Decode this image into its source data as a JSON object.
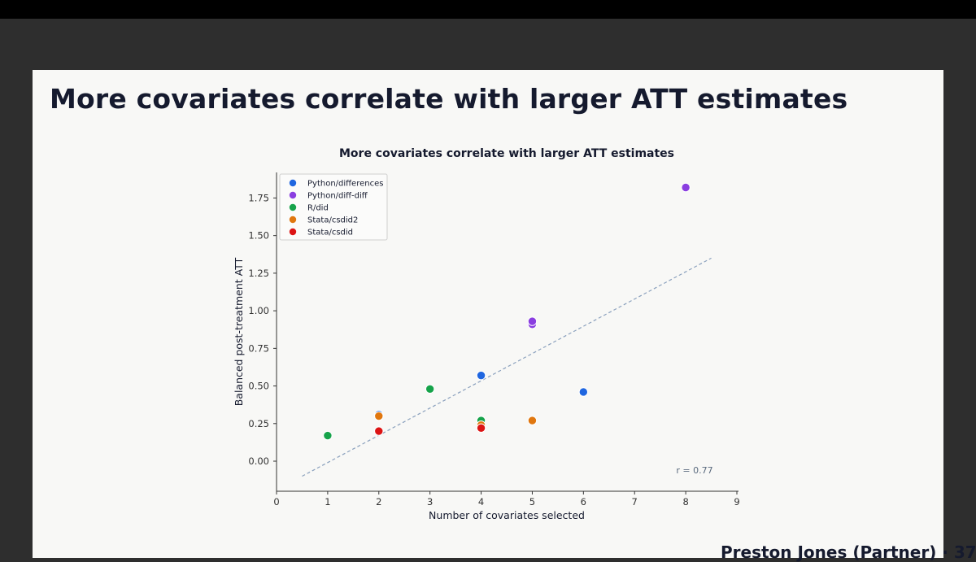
{
  "slide": {
    "title": "More covariates correlate with larger ATT estimates",
    "footer": "Preston Jones (Partner) · 37"
  },
  "colors": {
    "Python/differences": "#1f66e0",
    "Python/diff-diff": "#8a3ee0",
    "R/did": "#16a34a",
    "Stata/csdid2": "#e0770f",
    "Stata/csdid": "#dc1414",
    "trend": "#8aa0bd"
  },
  "chart_data": {
    "type": "scatter",
    "title": "More covariates correlate with larger ATT estimates",
    "xlabel": "Number of covariates selected",
    "ylabel": "Balanced post-treatment ATT",
    "xlim": [
      0,
      9
    ],
    "ylim": [
      -0.2,
      1.92
    ],
    "xticks": [
      "0",
      "1",
      "2",
      "3",
      "4",
      "5",
      "6",
      "7",
      "8",
      "9"
    ],
    "yticks": [
      "0.00",
      "0.25",
      "0.50",
      "0.75",
      "1.00",
      "1.25",
      "1.50",
      "1.75"
    ],
    "grid": false,
    "legend_position": "top-left",
    "annotation": "r = 0.77",
    "trendline": {
      "x": [
        0.5,
        8.5
      ],
      "y": [
        -0.1,
        1.35
      ]
    },
    "series": [
      {
        "name": "Python/differences",
        "points": [
          [
            2,
            0.31
          ],
          [
            4,
            0.57
          ],
          [
            6,
            0.46
          ]
        ]
      },
      {
        "name": "Python/diff-diff",
        "points": [
          [
            5,
            0.91
          ],
          [
            5,
            0.93
          ],
          [
            8,
            1.82
          ]
        ]
      },
      {
        "name": "R/did",
        "points": [
          [
            1,
            0.17
          ],
          [
            3,
            0.48
          ],
          [
            4,
            0.27
          ]
        ]
      },
      {
        "name": "Stata/csdid2",
        "points": [
          [
            2,
            0.3
          ],
          [
            4,
            0.24
          ],
          [
            5,
            0.27
          ]
        ]
      },
      {
        "name": "Stata/csdid",
        "points": [
          [
            2,
            0.2
          ],
          [
            4,
            0.22
          ]
        ]
      }
    ]
  }
}
